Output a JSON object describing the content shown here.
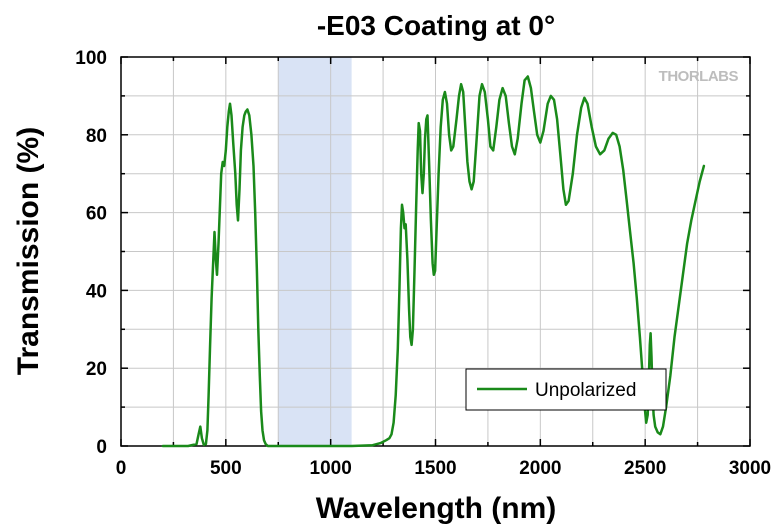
{
  "chart_data": {
    "type": "line",
    "title": "-E03 Coating at 0°",
    "xlabel": "Wavelength (nm)",
    "ylabel": "Transmission (%)",
    "xlim": [
      0,
      3000
    ],
    "ylim": [
      0,
      100
    ],
    "xticks": [
      0,
      500,
      1000,
      1500,
      2000,
      2500,
      3000
    ],
    "yticks": [
      0,
      20,
      40,
      60,
      80,
      100
    ],
    "grid": true,
    "legend_position": "bottom-right",
    "logo": "THORLABS",
    "highlight_band": {
      "x_range": [
        750,
        1100
      ],
      "color": "#d9e3f5"
    },
    "series": [
      {
        "name": "Unpolarized",
        "color": "#1a8a1a",
        "points": [
          [
            200,
            0
          ],
          [
            320,
            0
          ],
          [
            360,
            0.5
          ],
          [
            370,
            3
          ],
          [
            378,
            5
          ],
          [
            386,
            2
          ],
          [
            395,
            0.3
          ],
          [
            405,
            0.5
          ],
          [
            412,
            4
          ],
          [
            418,
            13
          ],
          [
            425,
            26
          ],
          [
            432,
            38
          ],
          [
            440,
            48
          ],
          [
            446,
            55
          ],
          [
            452,
            48
          ],
          [
            458,
            44
          ],
          [
            465,
            52
          ],
          [
            472,
            62
          ],
          [
            478,
            70
          ],
          [
            485,
            73
          ],
          [
            492,
            72
          ],
          [
            500,
            76
          ],
          [
            507,
            82
          ],
          [
            514,
            86
          ],
          [
            520,
            88
          ],
          [
            527,
            85
          ],
          [
            535,
            78
          ],
          [
            545,
            70
          ],
          [
            552,
            62
          ],
          [
            558,
            58
          ],
          [
            565,
            66
          ],
          [
            572,
            76
          ],
          [
            580,
            82
          ],
          [
            588,
            85
          ],
          [
            595,
            86
          ],
          [
            603,
            86.5
          ],
          [
            612,
            85
          ],
          [
            622,
            80
          ],
          [
            632,
            72
          ],
          [
            640,
            60
          ],
          [
            648,
            45
          ],
          [
            655,
            30
          ],
          [
            662,
            18
          ],
          [
            668,
            9
          ],
          [
            675,
            4
          ],
          [
            682,
            1.5
          ],
          [
            690,
            0.5
          ],
          [
            700,
            0
          ],
          [
            750,
            0
          ],
          [
            900,
            0
          ],
          [
            1100,
            0
          ],
          [
            1200,
            0.2
          ],
          [
            1240,
            0.8
          ],
          [
            1265,
            1.5
          ],
          [
            1280,
            2
          ],
          [
            1290,
            3
          ],
          [
            1300,
            6
          ],
          [
            1310,
            13
          ],
          [
            1320,
            25
          ],
          [
            1328,
            40
          ],
          [
            1335,
            56
          ],
          [
            1340,
            62
          ],
          [
            1346,
            60
          ],
          [
            1352,
            56
          ],
          [
            1358,
            57
          ],
          [
            1366,
            48
          ],
          [
            1374,
            35
          ],
          [
            1380,
            28
          ],
          [
            1386,
            26
          ],
          [
            1392,
            30
          ],
          [
            1400,
            45
          ],
          [
            1408,
            62
          ],
          [
            1415,
            76
          ],
          [
            1420,
            83
          ],
          [
            1426,
            81
          ],
          [
            1432,
            70
          ],
          [
            1438,
            65
          ],
          [
            1444,
            70
          ],
          [
            1450,
            79
          ],
          [
            1456,
            84
          ],
          [
            1462,
            85
          ],
          [
            1470,
            72
          ],
          [
            1478,
            58
          ],
          [
            1486,
            47
          ],
          [
            1492,
            44
          ],
          [
            1498,
            45
          ],
          [
            1505,
            55
          ],
          [
            1515,
            70
          ],
          [
            1525,
            82
          ],
          [
            1535,
            89
          ],
          [
            1545,
            91
          ],
          [
            1555,
            88
          ],
          [
            1565,
            80
          ],
          [
            1575,
            76
          ],
          [
            1585,
            77
          ],
          [
            1600,
            84
          ],
          [
            1612,
            90
          ],
          [
            1622,
            93
          ],
          [
            1632,
            91
          ],
          [
            1642,
            82
          ],
          [
            1652,
            73
          ],
          [
            1662,
            68
          ],
          [
            1672,
            66
          ],
          [
            1682,
            68
          ],
          [
            1695,
            78
          ],
          [
            1710,
            90
          ],
          [
            1722,
            93
          ],
          [
            1735,
            91
          ],
          [
            1750,
            84
          ],
          [
            1762,
            77
          ],
          [
            1775,
            76
          ],
          [
            1790,
            82
          ],
          [
            1805,
            89
          ],
          [
            1820,
            92
          ],
          [
            1835,
            90
          ],
          [
            1850,
            83
          ],
          [
            1865,
            77
          ],
          [
            1878,
            75
          ],
          [
            1892,
            79
          ],
          [
            1910,
            88
          ],
          [
            1925,
            94
          ],
          [
            1940,
            95
          ],
          [
            1955,
            92
          ],
          [
            1970,
            86
          ],
          [
            1985,
            80
          ],
          [
            2000,
            78
          ],
          [
            2015,
            81
          ],
          [
            2035,
            88
          ],
          [
            2050,
            90
          ],
          [
            2065,
            89
          ],
          [
            2080,
            84
          ],
          [
            2095,
            75
          ],
          [
            2110,
            66
          ],
          [
            2122,
            62
          ],
          [
            2135,
            63
          ],
          [
            2155,
            70
          ],
          [
            2175,
            80
          ],
          [
            2195,
            87
          ],
          [
            2210,
            89.5
          ],
          [
            2225,
            88
          ],
          [
            2245,
            82
          ],
          [
            2265,
            77
          ],
          [
            2285,
            75
          ],
          [
            2305,
            76
          ],
          [
            2325,
            79
          ],
          [
            2345,
            80.5
          ],
          [
            2362,
            80
          ],
          [
            2378,
            77
          ],
          [
            2395,
            71
          ],
          [
            2412,
            63
          ],
          [
            2428,
            55
          ],
          [
            2445,
            47
          ],
          [
            2460,
            38
          ],
          [
            2475,
            28
          ],
          [
            2488,
            18
          ],
          [
            2498,
            10
          ],
          [
            2505,
            6
          ],
          [
            2512,
            8
          ],
          [
            2518,
            18
          ],
          [
            2522,
            26
          ],
          [
            2526,
            29
          ],
          [
            2530,
            23
          ],
          [
            2535,
            14
          ],
          [
            2540,
            8
          ],
          [
            2548,
            5
          ],
          [
            2560,
            3.5
          ],
          [
            2572,
            3
          ],
          [
            2585,
            5
          ],
          [
            2600,
            10
          ],
          [
            2620,
            18
          ],
          [
            2640,
            28
          ],
          [
            2660,
            36
          ],
          [
            2680,
            44
          ],
          [
            2700,
            52
          ],
          [
            2720,
            58
          ],
          [
            2740,
            63
          ],
          [
            2760,
            68
          ],
          [
            2780,
            72
          ]
        ]
      }
    ]
  }
}
